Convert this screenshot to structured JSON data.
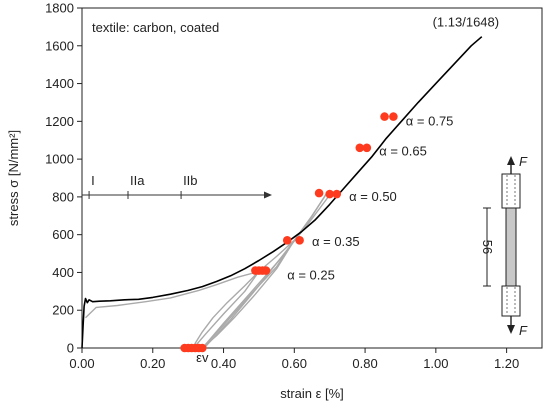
{
  "chart_data": {
    "type": "line",
    "title": "textile: carbon, coated",
    "xlabel": "strain ε [%]",
    "ylabel": "stress σ [N/mm²]",
    "xlim": [
      0,
      1.3
    ],
    "ylim": [
      0,
      1800
    ],
    "x_ticks": [
      "0.00",
      "0.20",
      "0.40",
      "0.60",
      "0.80",
      "1.00",
      "1.20"
    ],
    "y_ticks": [
      "0",
      "200",
      "400",
      "600",
      "800",
      "1000",
      "1200",
      "1400",
      "1600",
      "1800"
    ],
    "grid": false,
    "endpoint_label": "(1.13/1648)",
    "epsilon_label": "εv",
    "stages": {
      "y": 810,
      "labels": [
        {
          "text": "I",
          "x": 0.02
        },
        {
          "text": "IIa",
          "x": 0.13
        },
        {
          "text": "IIb",
          "x": 0.28
        }
      ]
    },
    "colors": {
      "monotonic": "#000000",
      "cyclic": "#aaaaaa",
      "markers": "#ff3b1f"
    },
    "series": [
      {
        "role": "monotonic",
        "points": [
          [
            0.0,
            0
          ],
          [
            0.003,
            120
          ],
          [
            0.006,
            220
          ],
          [
            0.01,
            262
          ],
          [
            0.015,
            240
          ],
          [
            0.02,
            255
          ],
          [
            0.03,
            245
          ],
          [
            0.05,
            248
          ],
          [
            0.08,
            250
          ],
          [
            0.12,
            255
          ],
          [
            0.16,
            258
          ],
          [
            0.2,
            268
          ],
          [
            0.25,
            285
          ],
          [
            0.3,
            305
          ],
          [
            0.34,
            325
          ],
          [
            0.38,
            352
          ],
          [
            0.42,
            382
          ],
          [
            0.46,
            420
          ],
          [
            0.5,
            463
          ],
          [
            0.54,
            510
          ],
          [
            0.58,
            560
          ],
          [
            0.62,
            615
          ],
          [
            0.66,
            680
          ],
          [
            0.7,
            760
          ],
          [
            0.74,
            845
          ],
          [
            0.78,
            930
          ],
          [
            0.82,
            1015
          ],
          [
            0.86,
            1110
          ],
          [
            0.9,
            1195
          ],
          [
            0.95,
            1300
          ],
          [
            1.0,
            1400
          ],
          [
            1.05,
            1500
          ],
          [
            1.1,
            1600
          ],
          [
            1.13,
            1648
          ]
        ]
      },
      {
        "role": "cyclic",
        "points": [
          [
            0.01,
            160
          ],
          [
            0.04,
            215
          ],
          [
            0.1,
            225
          ],
          [
            0.18,
            245
          ],
          [
            0.25,
            265
          ],
          [
            0.33,
            305
          ],
          [
            0.38,
            335
          ],
          [
            0.44,
            375
          ],
          [
            0.5,
            405
          ]
        ]
      },
      {
        "role": "cyclic",
        "points": [
          [
            0.5,
            405
          ],
          [
            0.46,
            330
          ],
          [
            0.41,
            240
          ],
          [
            0.37,
            160
          ],
          [
            0.34,
            85
          ],
          [
            0.32,
            25
          ],
          [
            0.315,
            0
          ]
        ]
      },
      {
        "role": "cyclic",
        "points": [
          [
            0.315,
            0
          ],
          [
            0.35,
            75
          ],
          [
            0.4,
            180
          ],
          [
            0.46,
            300
          ],
          [
            0.5,
            405
          ],
          [
            0.55,
            485
          ],
          [
            0.6,
            570
          ]
        ]
      },
      {
        "role": "cyclic",
        "points": [
          [
            0.6,
            570
          ],
          [
            0.55,
            420
          ],
          [
            0.49,
            285
          ],
          [
            0.43,
            160
          ],
          [
            0.38,
            65
          ],
          [
            0.34,
            0
          ]
        ]
      },
      {
        "role": "cyclic",
        "points": [
          [
            0.34,
            0
          ],
          [
            0.4,
            120
          ],
          [
            0.48,
            290
          ],
          [
            0.55,
            430
          ],
          [
            0.6,
            570
          ],
          [
            0.65,
            700
          ],
          [
            0.69,
            815
          ]
        ]
      },
      {
        "role": "cyclic",
        "points": [
          [
            0.69,
            815
          ],
          [
            0.63,
            640
          ],
          [
            0.56,
            470
          ],
          [
            0.48,
            300
          ],
          [
            0.4,
            130
          ],
          [
            0.35,
            20
          ],
          [
            0.345,
            0
          ]
        ]
      },
      {
        "role": "cyclic",
        "points": [
          [
            0.345,
            0
          ],
          [
            0.42,
            150
          ],
          [
            0.5,
            330
          ],
          [
            0.58,
            520
          ],
          [
            0.64,
            660
          ],
          [
            0.7,
            810
          ]
        ]
      }
    ],
    "marker_groups": [
      {
        "label": "α = 0.25",
        "points": [
          [
            0.49,
            410
          ],
          [
            0.5,
            410
          ],
          [
            0.51,
            410
          ],
          [
            0.52,
            410
          ]
        ],
        "label_pos": [
          0.58,
          385
        ]
      },
      {
        "label": "α = 0.35",
        "points": [
          [
            0.58,
            570
          ],
          [
            0.615,
            570
          ]
        ],
        "label_pos": [
          0.65,
          560
        ]
      },
      {
        "label": "α = 0.50",
        "points": [
          [
            0.67,
            820
          ],
          [
            0.7,
            815
          ],
          [
            0.72,
            815
          ]
        ],
        "label_pos": [
          0.755,
          800
        ]
      },
      {
        "label": "α = 0.65",
        "points": [
          [
            0.785,
            1060
          ],
          [
            0.805,
            1060
          ]
        ],
        "label_pos": [
          0.84,
          1040
        ]
      },
      {
        "label": "α = 0.75",
        "points": [
          [
            0.855,
            1225
          ],
          [
            0.88,
            1225
          ]
        ],
        "label_pos": [
          0.915,
          1200
        ]
      },
      {
        "label": "",
        "points": [
          [
            0.29,
            0
          ],
          [
            0.3,
            0
          ],
          [
            0.31,
            0
          ],
          [
            0.32,
            0
          ],
          [
            0.33,
            0
          ],
          [
            0.34,
            0
          ]
        ],
        "label_pos": null
      }
    ],
    "specimen": {
      "length_label": "56",
      "force_label": "F"
    }
  }
}
